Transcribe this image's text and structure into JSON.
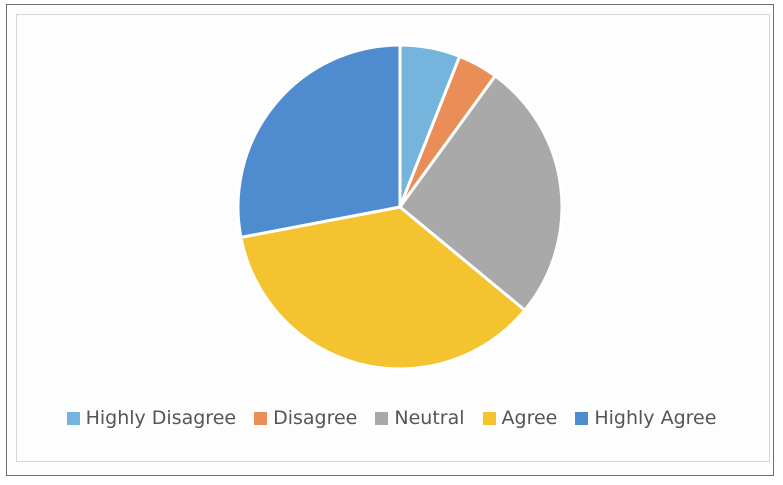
{
  "chart_data": {
    "type": "pie",
    "slices": [
      {
        "label": "Highly Disagree",
        "value": 6,
        "color": "#74b4dd"
      },
      {
        "label": "Disagree",
        "value": 4,
        "color": "#ea8e58"
      },
      {
        "label": "Neutral",
        "value": 26,
        "color": "#a9a9a9"
      },
      {
        "label": "Agree",
        "value": 36,
        "color": "#f4c430"
      },
      {
        "label": "Highly Agree",
        "value": 28,
        "color": "#4f8ccf"
      }
    ],
    "legend_position": "bottom"
  }
}
